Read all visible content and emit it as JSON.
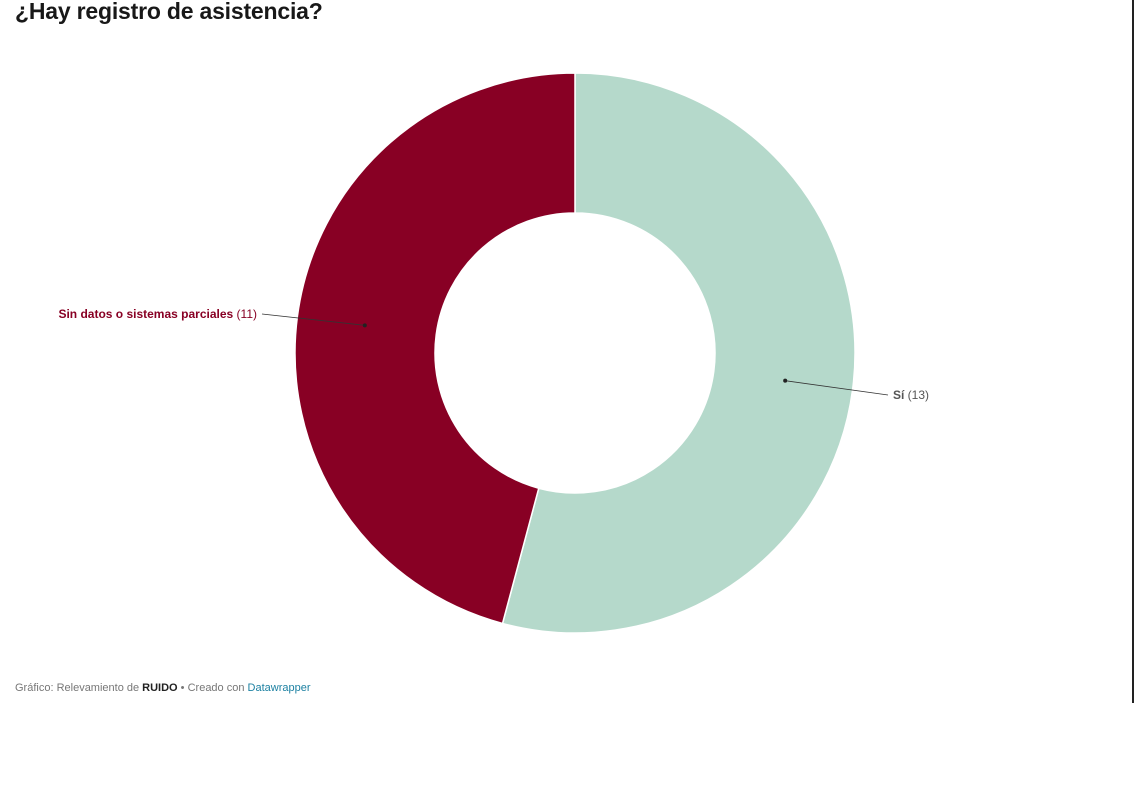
{
  "title": "¿Hay registro de asistencia?",
  "chart_data": {
    "type": "pie",
    "variant": "donut",
    "title": "¿Hay registro de asistencia?",
    "slices": [
      {
        "label": "Sí",
        "value": 13,
        "value_label": "(13)",
        "color": "#b5d9cb",
        "label_color": "#555555"
      },
      {
        "label": "Sin datos o sistemas parciales",
        "value": 11,
        "value_label": "(11)",
        "color": "#880024",
        "label_color": "#880024"
      }
    ],
    "start_angle": "top",
    "direction": "clockwise"
  },
  "footer": {
    "prefix": "Gráfico: Relevamiento de ",
    "source": "RUIDO",
    "middle": " • Creado con ",
    "link": "Datawrapper"
  }
}
